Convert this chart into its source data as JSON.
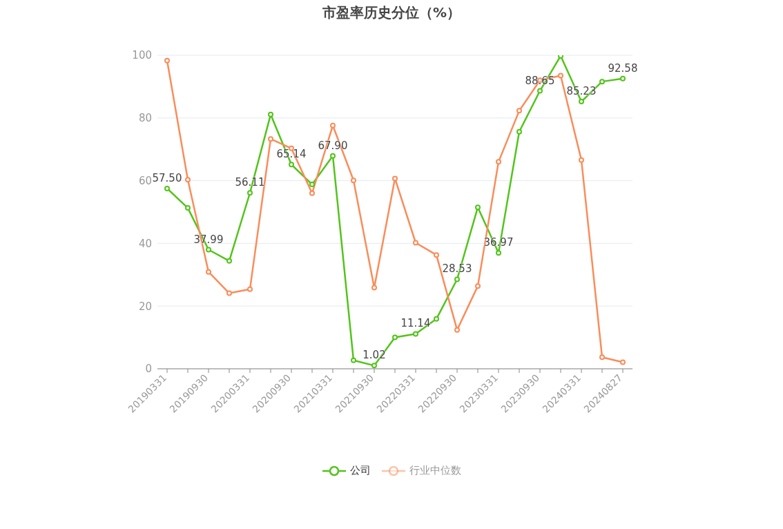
{
  "chart_data": {
    "type": "line",
    "title": "市盈率历史分位（%）",
    "categories": [
      "20190331",
      null,
      "20190930",
      null,
      "20200331",
      null,
      "20200930",
      null,
      "20210331",
      null,
      "20210930",
      null,
      "20220331",
      null,
      "20220930",
      null,
      "20230331",
      null,
      "20230930",
      null,
      "20240331",
      null,
      "20240827"
    ],
    "series": [
      {
        "name": "公司",
        "color": "#52c41a",
        "values": [
          57.5,
          51.3,
          37.99,
          34.4,
          56.11,
          81.1,
          65.14,
          58.8,
          67.9,
          2.7,
          1.02,
          10.0,
          11.14,
          15.9,
          28.53,
          51.5,
          36.97,
          75.6,
          88.65,
          99.8,
          85.23,
          91.6,
          92.58
        ],
        "value_labels": [
          "57.50",
          null,
          "37.99",
          null,
          "56.11",
          null,
          "65.14",
          null,
          "67.90",
          null,
          "1.02",
          null,
          "11.14",
          null,
          "28.53",
          null,
          "36.97",
          null,
          "88.65",
          null,
          "85.23",
          null,
          "92.58"
        ]
      },
      {
        "name": "行业中位数",
        "color": "#fa8c5a",
        "values": [
          98.3,
          60.3,
          30.9,
          24.1,
          25.4,
          73.3,
          70.3,
          56.0,
          77.6,
          60.1,
          25.9,
          60.7,
          40.2,
          36.3,
          12.4,
          26.4,
          66.0,
          82.3,
          92.0,
          93.5,
          66.6,
          3.7,
          2.1
        ]
      }
    ],
    "ylim": [
      0,
      100
    ],
    "yticks": [
      0,
      20,
      40,
      60,
      80,
      100
    ],
    "grid": "y",
    "legend": "bottom",
    "marker": "circle",
    "line_style": "solid"
  }
}
